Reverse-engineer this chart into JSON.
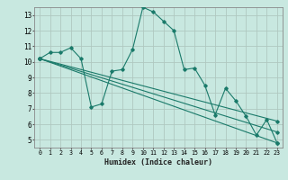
{
  "xlabel": "Humidex (Indice chaleur)",
  "background_color": "#c8e8e0",
  "grid_color": "#b0c8c0",
  "line_color": "#1a7a6a",
  "xlim": [
    -0.5,
    23.5
  ],
  "ylim": [
    4.5,
    13.5
  ],
  "xticks": [
    0,
    1,
    2,
    3,
    4,
    5,
    6,
    7,
    8,
    9,
    10,
    11,
    12,
    13,
    14,
    15,
    16,
    17,
    18,
    19,
    20,
    21,
    22,
    23
  ],
  "yticks": [
    5,
    6,
    7,
    8,
    9,
    10,
    11,
    12,
    13
  ],
  "lines": [
    {
      "x": [
        0,
        1,
        2,
        3,
        4,
        5,
        6,
        7,
        8,
        9,
        10,
        11,
        12,
        13,
        14,
        15,
        16,
        17,
        18,
        19,
        20,
        21,
        22,
        23
      ],
      "y": [
        10.2,
        10.6,
        10.6,
        10.9,
        10.2,
        7.1,
        7.3,
        9.4,
        9.5,
        10.8,
        13.5,
        13.2,
        12.6,
        12.0,
        9.5,
        9.6,
        8.5,
        6.6,
        8.3,
        7.5,
        6.5,
        5.3,
        6.3,
        4.8
      ]
    },
    {
      "x": [
        0,
        23
      ],
      "y": [
        10.2,
        4.8
      ]
    },
    {
      "x": [
        0,
        23
      ],
      "y": [
        10.2,
        5.5
      ]
    },
    {
      "x": [
        0,
        23
      ],
      "y": [
        10.2,
        6.2
      ]
    }
  ]
}
